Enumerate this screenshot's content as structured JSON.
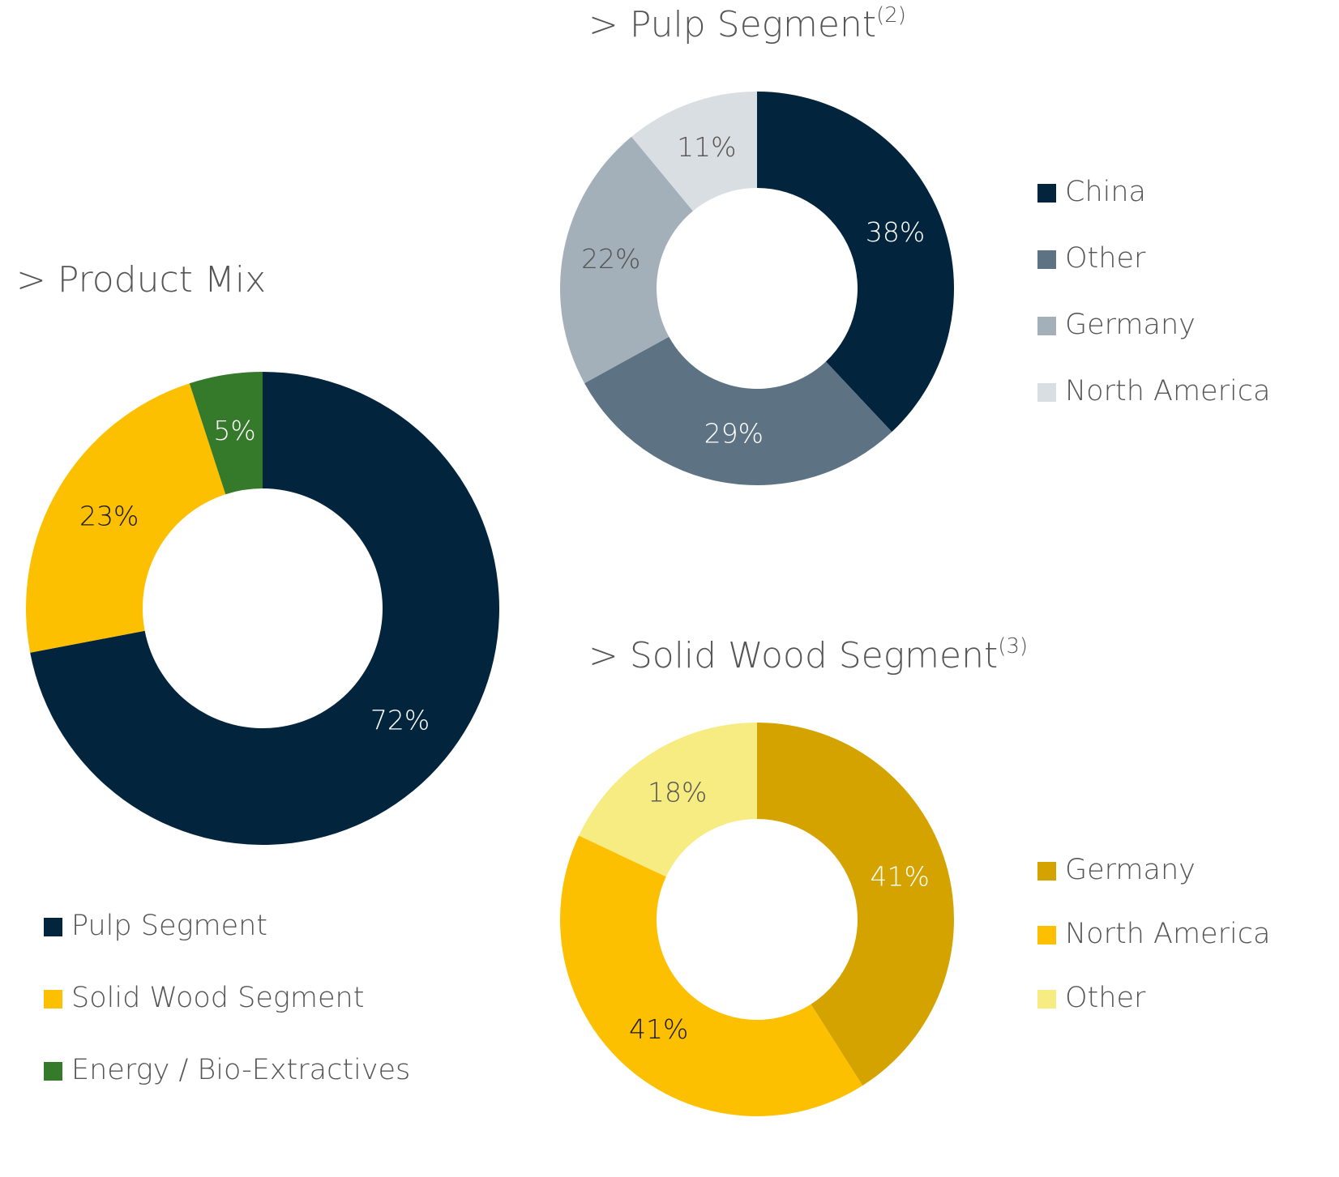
{
  "chart_data": [
    {
      "type": "donut",
      "title": "> Product Mix",
      "categories": [
        "Pulp Segment",
        "Solid Wood Segment",
        "Energy / Bio-Extractives"
      ],
      "values": [
        72,
        23,
        5
      ],
      "value_labels": [
        "72%",
        "23%",
        "5%"
      ],
      "colors": [
        "#02243d",
        "#fdc000",
        "#347a2a"
      ],
      "label_colors": [
        "#ffffff",
        "#1a1a1a",
        "#ffffff"
      ]
    },
    {
      "type": "donut",
      "title": "> Pulp Segment",
      "title_superscript": "(2)",
      "categories": [
        "China",
        "Other",
        "Germany",
        "North America"
      ],
      "values": [
        38,
        29,
        22,
        11
      ],
      "value_labels": [
        "38%",
        "29%",
        "22%",
        "11%"
      ],
      "colors": [
        "#02243d",
        "#5d7384",
        "#a3b0b9",
        "#d9dee2"
      ],
      "label_colors": [
        "#ffffff",
        "#ffffff",
        "#555555",
        "#555555"
      ]
    },
    {
      "type": "donut",
      "title": "> Solid Wood Segment",
      "title_superscript": "(3)",
      "categories": [
        "Germany",
        "North America",
        "Other"
      ],
      "values": [
        41,
        41,
        18
      ],
      "value_labels": [
        "41%",
        "41%",
        "18%"
      ],
      "colors": [
        "#d4a300",
        "#fdc000",
        "#f7ec82"
      ],
      "label_colors": [
        "#ffffff",
        "#1a1a1a",
        "#555555"
      ]
    }
  ]
}
